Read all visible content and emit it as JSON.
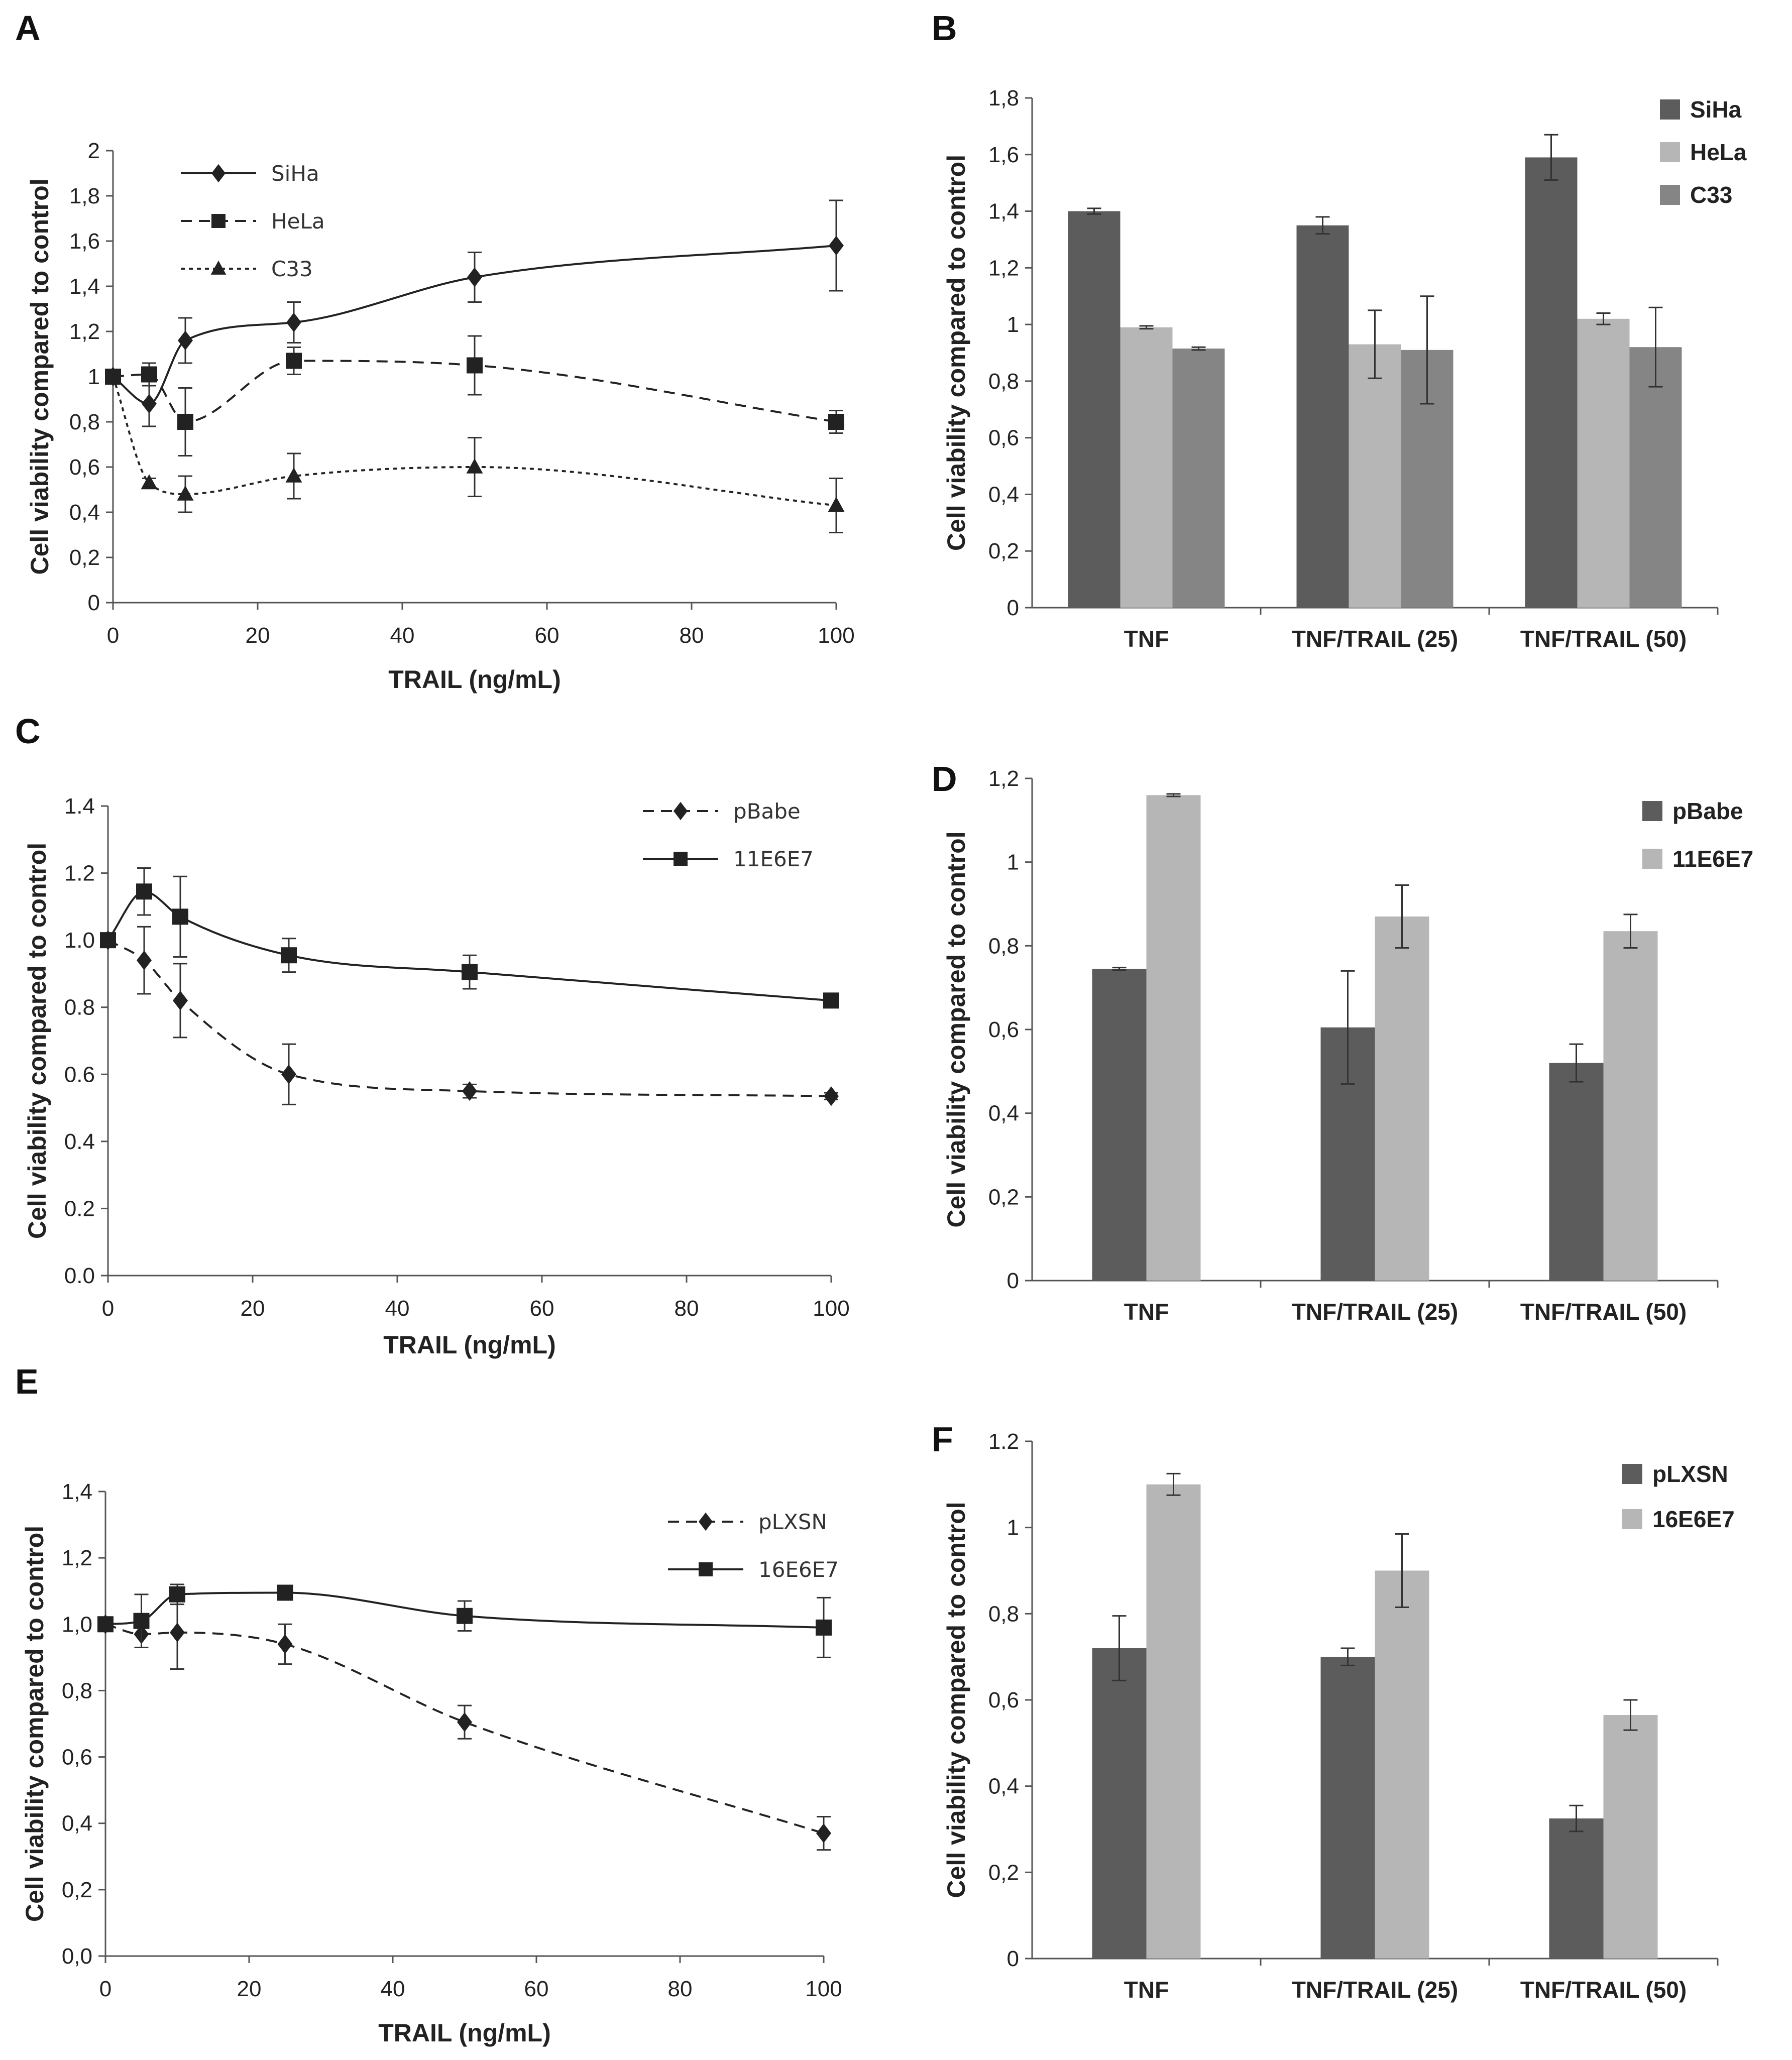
{
  "colors": {
    "dark": "#5c5c5c",
    "light": "#b6b6b6",
    "mid": "#858585",
    "line": "#222222"
  },
  "chart_data": [
    {
      "panel": "A",
      "type": "line",
      "xlabel": "TRAIL (ng/mL)",
      "ylabel": "Cell viability compared to control",
      "xlim": [
        0,
        100
      ],
      "ylim": [
        0,
        2
      ],
      "xticks": [
        0,
        20,
        40,
        60,
        80,
        100
      ],
      "xtick_labels": [
        "0",
        "20",
        "40",
        "60",
        "80",
        "100"
      ],
      "yticks": [
        0,
        0.2,
        0.4,
        0.6,
        0.8,
        1,
        1.2,
        1.4,
        1.6,
        1.8,
        2
      ],
      "ytick_labels": [
        "0",
        "0,2",
        "0,4",
        "0,6",
        "0,8",
        "1",
        "1,2",
        "1,4",
        "1,6",
        "1,8",
        "2"
      ],
      "x": [
        0,
        5,
        10,
        25,
        50,
        100
      ],
      "series": [
        {
          "name": "SiHa",
          "style": "solid",
          "marker": "diamond",
          "values": [
            1.0,
            0.88,
            1.16,
            1.24,
            1.44,
            1.58
          ],
          "errors": [
            0.0,
            0.1,
            0.1,
            0.09,
            0.11,
            0.2
          ]
        },
        {
          "name": "HeLa",
          "style": "dash",
          "marker": "square",
          "values": [
            1.0,
            1.01,
            0.8,
            1.07,
            1.05,
            0.8
          ],
          "errors": [
            0.0,
            0.05,
            0.15,
            0.06,
            0.13,
            0.05
          ]
        },
        {
          "name": "C33",
          "style": "dot",
          "marker": "triangle",
          "values": [
            1.0,
            0.53,
            0.48,
            0.56,
            0.6,
            0.43
          ],
          "errors": [
            0.0,
            0.02,
            0.08,
            0.1,
            0.13,
            0.12
          ]
        }
      ],
      "legend_position": "top-left"
    },
    {
      "panel": "B",
      "type": "bar",
      "ylabel": "Cell viability compared to control",
      "ylim": [
        0,
        1.8
      ],
      "yticks": [
        0,
        0.2,
        0.4,
        0.6,
        0.8,
        1,
        1.2,
        1.4,
        1.6,
        1.8
      ],
      "ytick_labels": [
        "0",
        "0,2",
        "0,4",
        "0,6",
        "0,8",
        "1",
        "1,2",
        "1,4",
        "1,6",
        "1,8"
      ],
      "categories": [
        "TNF",
        "TNF/TRAIL (25)",
        "TNF/TRAIL (50)"
      ],
      "series": [
        {
          "name": "SiHa",
          "color": "dark",
          "values": [
            1.4,
            1.35,
            1.59
          ],
          "errors": [
            0.01,
            0.03,
            0.08
          ]
        },
        {
          "name": "HeLa",
          "color": "light",
          "values": [
            0.99,
            0.93,
            1.02
          ],
          "errors": [
            0.005,
            0.12,
            0.02
          ]
        },
        {
          "name": "C33",
          "color": "mid",
          "values": [
            0.915,
            0.91,
            0.92
          ],
          "errors": [
            0.005,
            0.19,
            0.14
          ]
        }
      ],
      "legend_position": "top-right"
    },
    {
      "panel": "C",
      "type": "line",
      "xlabel": "TRAIL  (ng/mL)",
      "ylabel": "Cell viability compared to control",
      "xlim": [
        0,
        100
      ],
      "ylim": [
        0,
        1.4
      ],
      "xticks": [
        0,
        20,
        40,
        60,
        80,
        100
      ],
      "xtick_labels": [
        "0",
        "20",
        "40",
        "60",
        "80",
        "100"
      ],
      "yticks": [
        0,
        0.2,
        0.4,
        0.6,
        0.8,
        1.0,
        1.2,
        1.4
      ],
      "ytick_labels": [
        "0.0",
        "0.2",
        "0.4",
        "0.6",
        "0.8",
        "1.0",
        "1.2",
        "1.4"
      ],
      "x": [
        0,
        5,
        10,
        25,
        50,
        100
      ],
      "series": [
        {
          "name": "pBabe",
          "style": "dash",
          "marker": "diamond",
          "values": [
            1.0,
            0.94,
            0.82,
            0.6,
            0.55,
            0.535
          ],
          "errors": [
            0.0,
            0.1,
            0.11,
            0.09,
            0.02,
            0.01
          ]
        },
        {
          "name": "11E6E7",
          "style": "solid",
          "marker": "square",
          "values": [
            1.0,
            1.145,
            1.07,
            0.955,
            0.905,
            0.82
          ],
          "errors": [
            0.0,
            0.07,
            0.12,
            0.05,
            0.05,
            0.01
          ]
        }
      ],
      "legend_position": "top-right"
    },
    {
      "panel": "D",
      "type": "bar",
      "ylabel": "Cell viability compared to control",
      "ylim": [
        0,
        1.2
      ],
      "yticks": [
        0,
        0.2,
        0.4,
        0.6,
        0.8,
        1,
        1.2
      ],
      "ytick_labels": [
        "0",
        "0,2",
        "0,4",
        "0,6",
        "0,8",
        "1",
        "1,2"
      ],
      "categories": [
        "TNF",
        "TNF/TRAIL (25)",
        "TNF/TRAIL (50)"
      ],
      "series": [
        {
          "name": "pBabe",
          "color": "dark",
          "values": [
            0.745,
            0.605,
            0.52
          ],
          "errors": [
            0.003,
            0.135,
            0.045
          ]
        },
        {
          "name": "11E6E7",
          "color": "light",
          "values": [
            1.16,
            0.87,
            0.835
          ],
          "errors": [
            0.003,
            0.075,
            0.04
          ]
        }
      ],
      "legend_position": "top-right"
    },
    {
      "panel": "E",
      "type": "line",
      "xlabel": "TRAIL  (ng/mL)",
      "ylabel": "Cell viability compared to control",
      "xlim": [
        0,
        100
      ],
      "ylim": [
        0,
        1.4
      ],
      "xticks": [
        0,
        20,
        40,
        60,
        80,
        100
      ],
      "xtick_labels": [
        "0",
        "20",
        "40",
        "60",
        "80",
        "100"
      ],
      "yticks": [
        0,
        0.2,
        0.4,
        0.6,
        0.8,
        1.0,
        1.2,
        1.4
      ],
      "ytick_labels": [
        "0,0",
        "0,2",
        "0,4",
        "0,6",
        "0,8",
        "1,0",
        "1,2",
        "1,4"
      ],
      "x": [
        0,
        5,
        10,
        25,
        50,
        100
      ],
      "series": [
        {
          "name": "pLXSN",
          "style": "dash",
          "marker": "diamond",
          "values": [
            1.0,
            0.97,
            0.975,
            0.94,
            0.705,
            0.37
          ],
          "errors": [
            0.0,
            0.04,
            0.11,
            0.06,
            0.05,
            0.05
          ]
        },
        {
          "name": "16E6E7",
          "style": "solid",
          "marker": "square",
          "values": [
            1.0,
            1.01,
            1.09,
            1.095,
            1.025,
            0.99
          ],
          "errors": [
            0.0,
            0.08,
            0.03,
            0.01,
            0.045,
            0.09
          ]
        }
      ],
      "legend_position": "top-right"
    },
    {
      "panel": "F",
      "type": "bar",
      "ylabel": "Cell viability compared to control",
      "ylim": [
        0,
        1.2
      ],
      "yticks": [
        0,
        0.2,
        0.4,
        0.6,
        0.8,
        1,
        1.2
      ],
      "ytick_labels": [
        "0",
        "0,2",
        "0,4",
        "0,6",
        "0,8",
        "1",
        "1.2"
      ],
      "categories": [
        "TNF",
        "TNF/TRAIL (25)",
        "TNF/TRAIL (50)"
      ],
      "series": [
        {
          "name": "pLXSN",
          "color": "dark",
          "values": [
            0.72,
            0.7,
            0.325
          ],
          "errors": [
            0.075,
            0.02,
            0.03
          ]
        },
        {
          "name": "16E6E7",
          "color": "light",
          "values": [
            1.1,
            0.9,
            0.565
          ],
          "errors": [
            0.025,
            0.085,
            0.035
          ]
        }
      ],
      "legend_position": "top-right"
    }
  ]
}
